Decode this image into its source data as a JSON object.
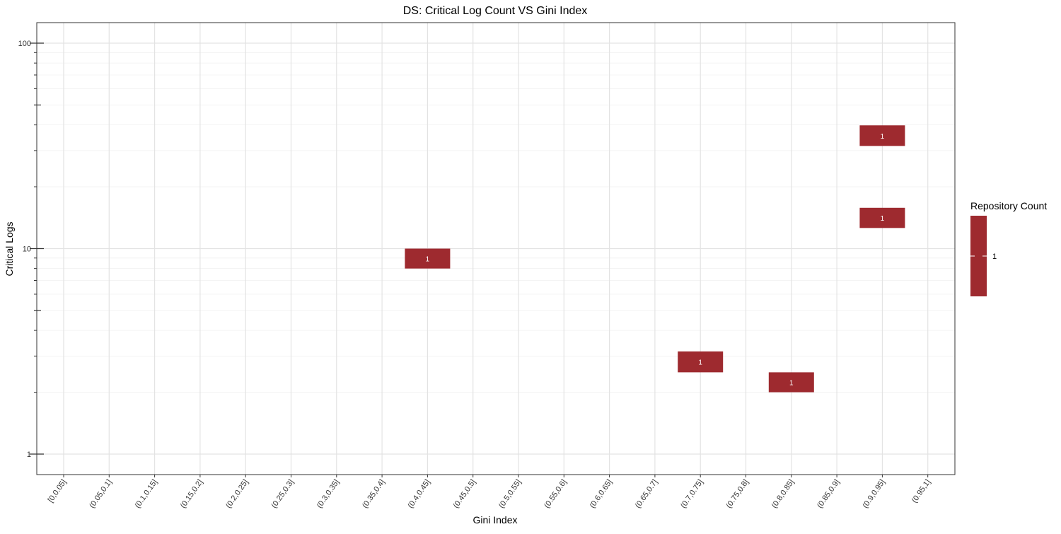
{
  "chart_data": {
    "type": "heatmap",
    "title": "DS: Critical Log Count VS Gini Index",
    "xlabel": "Gini Index",
    "ylabel": "Critical Logs",
    "y_scale": "log10",
    "ylim": [
      0.8,
      125
    ],
    "categories": [
      "[0,0.05]",
      "(0.05,0.1]",
      "(0.1,0.15]",
      "(0.15,0.2]",
      "(0.2,0.25]",
      "(0.25,0.3]",
      "(0.3,0.35]",
      "(0.35,0.4]",
      "(0.4,0.45]",
      "(0.45,0.5]",
      "(0.5,0.55]",
      "(0.55,0.6]",
      "(0.6,0.65]",
      "(0.65,0.7]",
      "(0.7,0.75]",
      "(0.75,0.8]",
      "(0.8,0.85]",
      "(0.85,0.9]",
      "(0.9,0.95]",
      "(0.95,1]"
    ],
    "y_ticks": [
      {
        "value": 1,
        "label": "1"
      },
      {
        "value": 10,
        "label": "10"
      },
      {
        "value": 100,
        "label": "100"
      }
    ],
    "cells": [
      {
        "x": "(0.4,0.45]",
        "y_low": 8,
        "y_high": 10,
        "count": 1,
        "label": "1"
      },
      {
        "x": "(0.7,0.75]",
        "y_low": 2.5,
        "y_high": 3.16,
        "count": 1,
        "label": "1"
      },
      {
        "x": "(0.8,0.85]",
        "y_low": 2.0,
        "y_high": 2.5,
        "count": 1,
        "label": "1"
      },
      {
        "x": "(0.9,0.95]",
        "y_low": 12.6,
        "y_high": 15.8,
        "count": 1,
        "label": "1"
      },
      {
        "x": "(0.9,0.95]",
        "y_low": 31.6,
        "y_high": 39.8,
        "count": 1,
        "label": "1"
      }
    ],
    "legend": {
      "title": "Repository Count",
      "position": "right",
      "ticks": [
        {
          "value": 1,
          "label": "1"
        }
      ]
    },
    "colors": {
      "fill": "#9e2a2f",
      "grid_major": "#e3e3e3",
      "grid_minor": "#f0f0f0",
      "panel_border": "#333333",
      "cell_label": "#ffffff"
    },
    "grid": true
  }
}
